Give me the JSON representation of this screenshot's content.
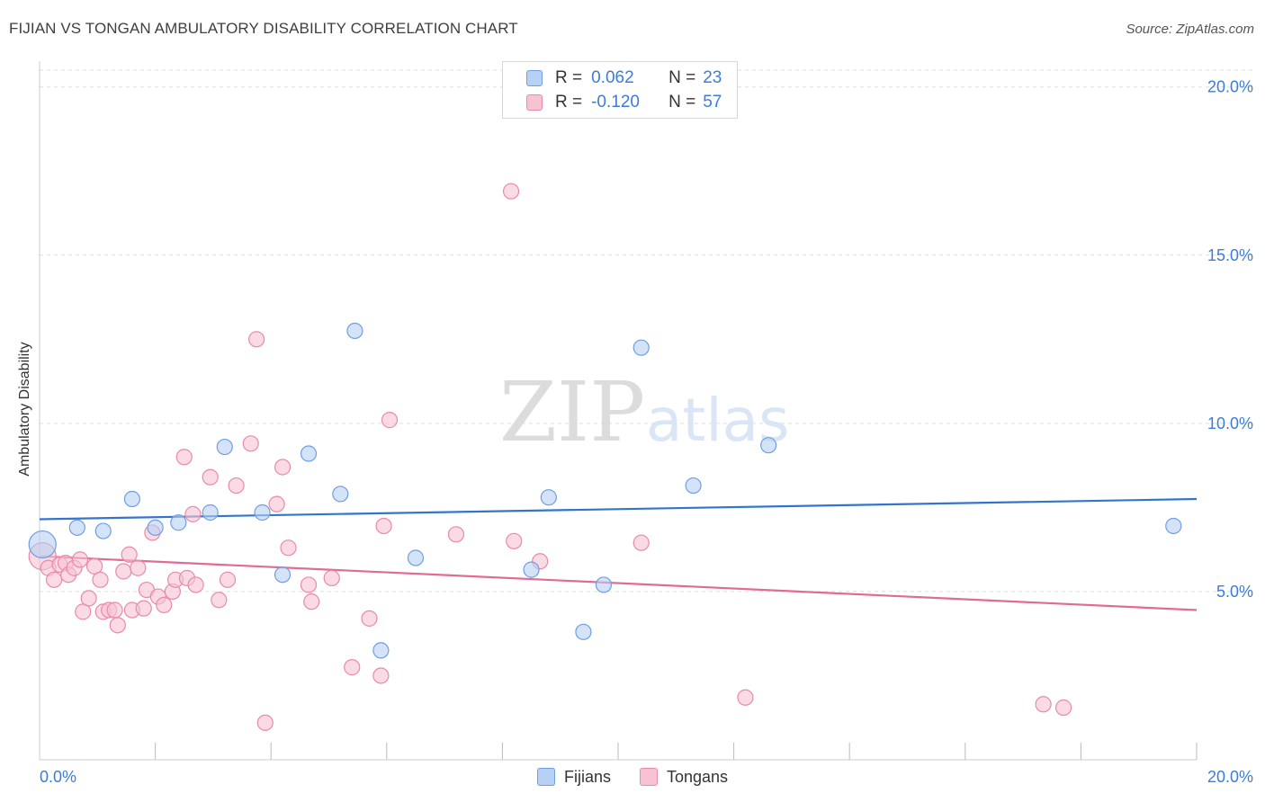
{
  "title": "FIJIAN VS TONGAN AMBULATORY DISABILITY CORRELATION CHART",
  "source": "Source: ZipAtlas.com",
  "legend": {
    "r_label": "R =",
    "n_label": "N =",
    "rows": [
      {
        "r": "0.062",
        "n": "23"
      },
      {
        "r": "-0.120",
        "n": "57"
      }
    ]
  },
  "watermark": {
    "zip": "ZIP",
    "atlas": "atlas"
  },
  "colors": {
    "fijians_fill": "#b8d0f3",
    "fijians_stroke": "#6f9fe0",
    "fijians_line": "#3375cc",
    "tongans_fill": "#f7c3d3",
    "tongans_stroke": "#e98aa8",
    "tongans_line": "#e06b94",
    "axis_text": "#3b7dd8",
    "grid": "#dddddd"
  },
  "chart_data": {
    "type": "scatter",
    "xlabel": "",
    "ylabel": "Ambulatory Disability",
    "xlim": [
      0,
      20
    ],
    "ylim": [
      0,
      20.5
    ],
    "x_tick_labels": [
      "0.0%",
      "20.0%"
    ],
    "y_ticks": [
      5,
      10,
      15,
      20
    ],
    "y_tick_labels": [
      "5.0%",
      "10.0%",
      "15.0%",
      "20.0%"
    ],
    "grid": true,
    "series": [
      {
        "name": "Fijians",
        "r": 0.062,
        "n": 23,
        "trend": {
          "x0": 0,
          "y0": 7.15,
          "x1": 20,
          "y1": 7.75
        },
        "points": [
          {
            "x": 0.05,
            "y": 6.4,
            "big": true
          },
          {
            "x": 0.65,
            "y": 6.9
          },
          {
            "x": 1.1,
            "y": 6.8
          },
          {
            "x": 1.6,
            "y": 7.75
          },
          {
            "x": 2.0,
            "y": 6.9
          },
          {
            "x": 2.4,
            "y": 7.05
          },
          {
            "x": 2.95,
            "y": 7.35
          },
          {
            "x": 3.2,
            "y": 9.3
          },
          {
            "x": 3.85,
            "y": 7.35
          },
          {
            "x": 4.2,
            "y": 5.5
          },
          {
            "x": 4.65,
            "y": 9.1
          },
          {
            "x": 5.2,
            "y": 7.9
          },
          {
            "x": 5.45,
            "y": 12.75
          },
          {
            "x": 5.9,
            "y": 3.25
          },
          {
            "x": 6.5,
            "y": 6.0
          },
          {
            "x": 8.5,
            "y": 5.65
          },
          {
            "x": 8.8,
            "y": 7.8
          },
          {
            "x": 9.4,
            "y": 3.8
          },
          {
            "x": 9.75,
            "y": 5.2
          },
          {
            "x": 10.4,
            "y": 12.25
          },
          {
            "x": 11.3,
            "y": 8.15
          },
          {
            "x": 12.6,
            "y": 9.35
          },
          {
            "x": 19.6,
            "y": 6.95
          }
        ]
      },
      {
        "name": "Tongans",
        "r": -0.12,
        "n": 57,
        "trend": {
          "x0": 0,
          "y0": 6.05,
          "x1": 20,
          "y1": 4.45
        },
        "points": [
          {
            "x": 0.05,
            "y": 6.05,
            "big": true
          },
          {
            "x": 0.15,
            "y": 5.7
          },
          {
            "x": 0.25,
            "y": 5.35
          },
          {
            "x": 0.35,
            "y": 5.8
          },
          {
            "x": 0.45,
            "y": 5.85
          },
          {
            "x": 0.5,
            "y": 5.5
          },
          {
            "x": 0.6,
            "y": 5.7
          },
          {
            "x": 0.7,
            "y": 5.95
          },
          {
            "x": 0.75,
            "y": 4.4
          },
          {
            "x": 0.85,
            "y": 4.8
          },
          {
            "x": 0.95,
            "y": 5.75
          },
          {
            "x": 1.05,
            "y": 5.35
          },
          {
            "x": 1.1,
            "y": 4.4
          },
          {
            "x": 1.2,
            "y": 4.45
          },
          {
            "x": 1.3,
            "y": 4.45
          },
          {
            "x": 1.35,
            "y": 4.0
          },
          {
            "x": 1.45,
            "y": 5.6
          },
          {
            "x": 1.55,
            "y": 6.1
          },
          {
            "x": 1.6,
            "y": 4.45
          },
          {
            "x": 1.7,
            "y": 5.7
          },
          {
            "x": 1.8,
            "y": 4.5
          },
          {
            "x": 1.85,
            "y": 5.05
          },
          {
            "x": 1.95,
            "y": 6.75
          },
          {
            "x": 2.05,
            "y": 4.85
          },
          {
            "x": 2.15,
            "y": 4.6
          },
          {
            "x": 2.3,
            "y": 5.0
          },
          {
            "x": 2.35,
            "y": 5.35
          },
          {
            "x": 2.5,
            "y": 9.0
          },
          {
            "x": 2.55,
            "y": 5.4
          },
          {
            "x": 2.65,
            "y": 7.3
          },
          {
            "x": 2.7,
            "y": 5.2
          },
          {
            "x": 2.95,
            "y": 8.4
          },
          {
            "x": 3.1,
            "y": 4.75
          },
          {
            "x": 3.25,
            "y": 5.35
          },
          {
            "x": 3.4,
            "y": 8.15
          },
          {
            "x": 3.65,
            "y": 9.4
          },
          {
            "x": 3.75,
            "y": 12.5
          },
          {
            "x": 3.9,
            "y": 1.1
          },
          {
            "x": 4.1,
            "y": 7.6
          },
          {
            "x": 4.2,
            "y": 8.7
          },
          {
            "x": 4.3,
            "y": 6.3
          },
          {
            "x": 4.65,
            "y": 5.2
          },
          {
            "x": 4.7,
            "y": 4.7
          },
          {
            "x": 5.05,
            "y": 5.4
          },
          {
            "x": 5.4,
            "y": 2.75
          },
          {
            "x": 5.7,
            "y": 4.2
          },
          {
            "x": 5.9,
            "y": 2.5
          },
          {
            "x": 6.05,
            "y": 10.1
          },
          {
            "x": 5.95,
            "y": 6.95
          },
          {
            "x": 7.2,
            "y": 6.7
          },
          {
            "x": 8.15,
            "y": 16.9
          },
          {
            "x": 8.2,
            "y": 6.5
          },
          {
            "x": 8.65,
            "y": 5.9
          },
          {
            "x": 10.4,
            "y": 6.45
          },
          {
            "x": 12.2,
            "y": 1.85
          },
          {
            "x": 17.35,
            "y": 1.65
          },
          {
            "x": 17.7,
            "y": 1.55
          }
        ]
      }
    ]
  }
}
